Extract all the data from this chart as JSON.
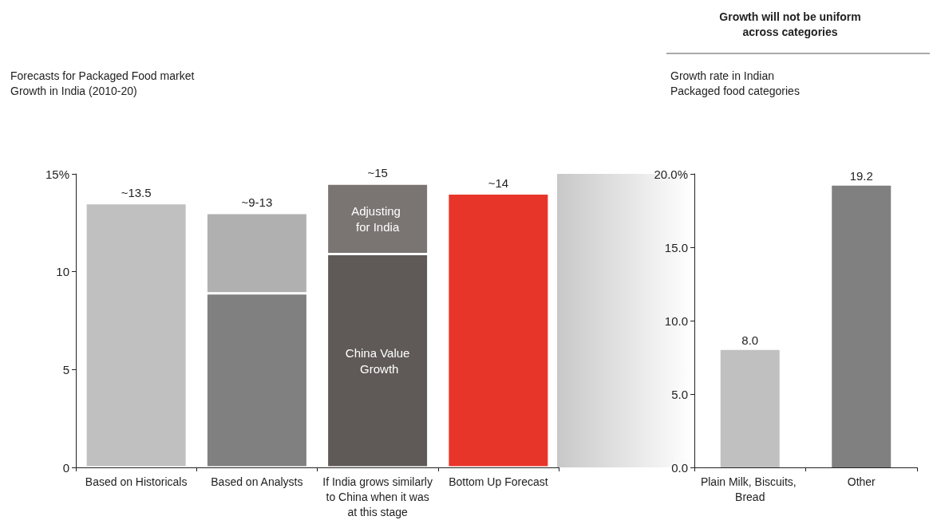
{
  "chart_data": [
    {
      "type": "bar",
      "title": "Forecasts for Packaged Food market\nGrowth in India (2010-20)",
      "stacked": true,
      "categories": [
        "Based on Historicals",
        "Based on Analysts",
        "If India grows similarly to China when it was at this stage",
        "Bottom Up Forecast"
      ],
      "series": [
        {
          "colors": [
            "#c0c0c0",
            "#808080",
            "#5f5a58",
            "#e8352a"
          ],
          "values": [
            13.5,
            8.9,
            10.9,
            14
          ]
        },
        {
          "colors": [
            "#c0c0c0",
            "#b0b0b0",
            "#7a7573",
            "#e8352a"
          ],
          "values": [
            null,
            4.1,
            3.6,
            null
          ]
        }
      ],
      "totals": [
        "~13.5",
        "~9-13",
        "~15",
        "~14"
      ],
      "annotations": [
        "China Value Growth",
        "Adjusting for India"
      ],
      "ylim": [
        0,
        15
      ],
      "yticks": [
        0,
        5,
        10,
        {
          "value": 15,
          "label": "15%"
        }
      ],
      "grid": false
    },
    {
      "type": "bar",
      "title": "Growth will not be uniform\nacross categories",
      "subtitle": "Growth rate in Indian\nPackaged food categories",
      "categories": [
        "Plain Milk, Biscuits, Bread",
        "Other"
      ],
      "values": [
        8.0,
        19.2
      ],
      "colors": [
        "#c0c0c0",
        "#808080"
      ],
      "value_labels": [
        "8.0",
        "19.2"
      ],
      "ylim": [
        0,
        20
      ],
      "yticks": [
        {
          "value": 0,
          "label": "0.0"
        },
        {
          "value": 5,
          "label": "5.0"
        },
        {
          "value": 10,
          "label": "10.0"
        },
        {
          "value": 15,
          "label": "15.0"
        },
        {
          "value": 20,
          "label": "20.0%"
        }
      ],
      "grid": false
    }
  ]
}
